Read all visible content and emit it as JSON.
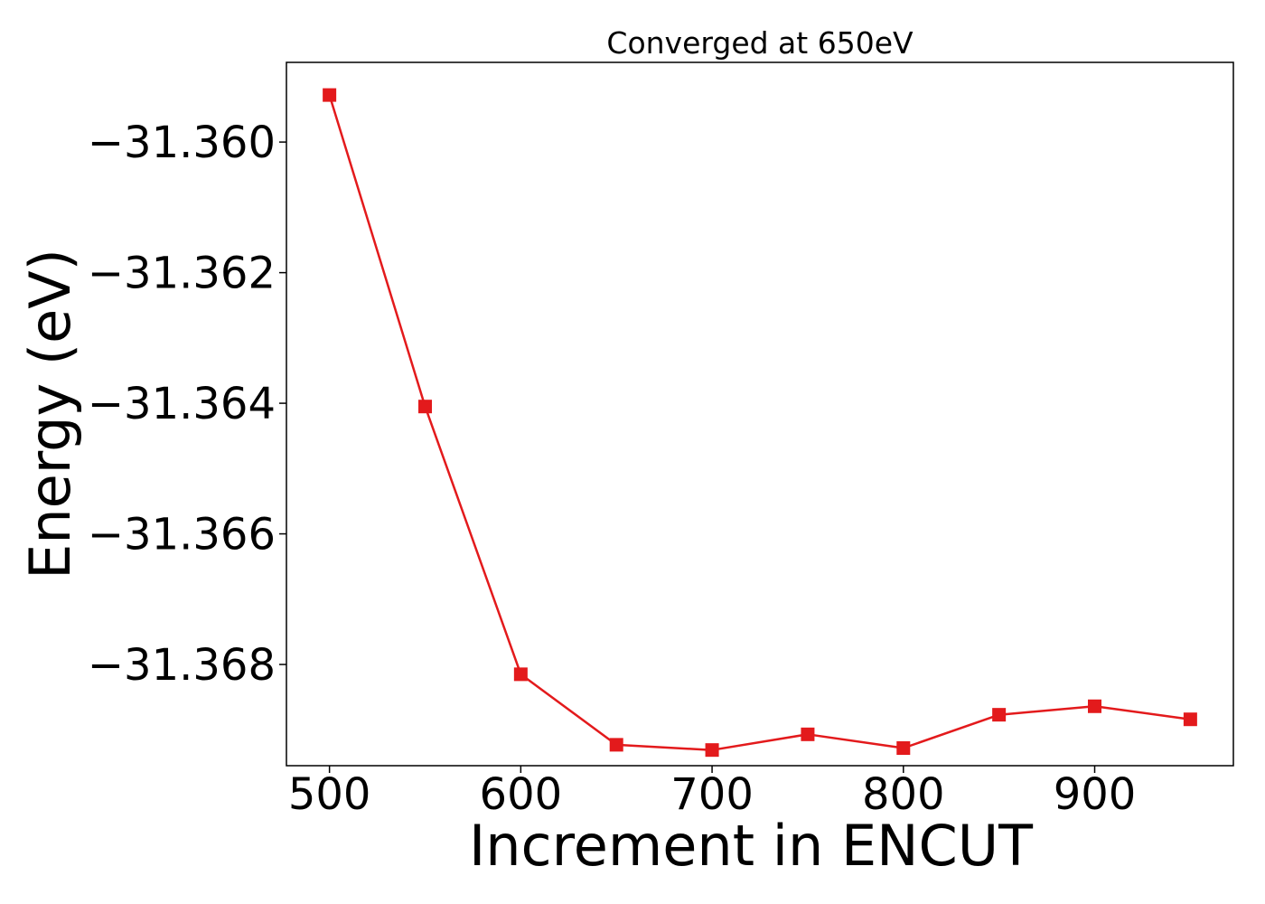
{
  "chart_data": {
    "type": "line",
    "title": "Converged at 650eV",
    "xlabel": "Increment in ENCUT",
    "ylabel": "Energy (eV)",
    "x": [
      500,
      550,
      600,
      650,
      700,
      750,
      800,
      850,
      900,
      950
    ],
    "series": [
      {
        "values": [
          -31.35928,
          -31.36405,
          -31.36815,
          -31.36923,
          -31.36931,
          -31.36907,
          -31.36928,
          -31.36877,
          -31.36864,
          -31.36884
        ],
        "color": "#e31a1c",
        "marker": "square"
      }
    ],
    "xticks": [
      500,
      600,
      700,
      800,
      900
    ],
    "xtick_labels": [
      "500",
      "600",
      "700",
      "800",
      "900"
    ],
    "yticks": [
      -31.36,
      -31.362,
      -31.364,
      -31.366,
      -31.368
    ],
    "ytick_labels": [
      "−31.360",
      "−31.362",
      "−31.364",
      "−31.366",
      "−31.368"
    ],
    "xlim": [
      477.5,
      972.5
    ],
    "ylim": [
      -31.36955,
      -31.35878
    ],
    "grid": false,
    "legend": false
  }
}
